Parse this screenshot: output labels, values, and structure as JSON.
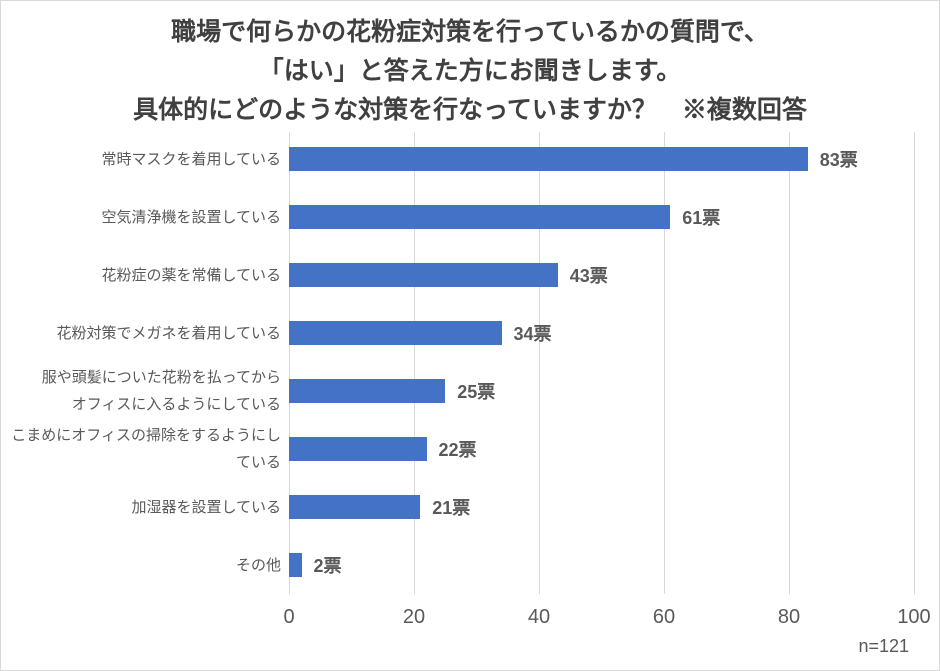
{
  "title": {
    "lines": [
      "職場で何らかの花粉症対策を行っているかの質問で、",
      "「はい」と答えた方にお聞きします。",
      "具体的にどのような対策を行なっていますか？　※複数回答"
    ]
  },
  "chart_data": {
    "type": "bar",
    "orientation": "horizontal",
    "title": "職場で何らかの花粉症対策を行っているかの質問で、「はい」と答えた方にお聞きします。具体的にどのような対策を行なっていますか？　※複数回答",
    "categories": [
      "常時マスクを着用している",
      "空気清浄機を設置している",
      "花粉症の薬を常備している",
      "花粉対策でメガネを着用している",
      "服や頭髪についた花粉を払ってから\nオフィスに入るようにしている",
      "こまめにオフィスの掃除をするようにしている",
      "加湿器を設置している",
      "その他"
    ],
    "values": [
      83,
      61,
      43,
      34,
      25,
      22,
      21,
      2
    ],
    "value_labels": [
      "83票",
      "61票",
      "43票",
      "34票",
      "25票",
      "22票",
      "21票",
      "2票"
    ],
    "value_suffix": "票",
    "xlabel": "",
    "ylabel": "",
    "xlim": [
      0,
      100
    ],
    "xticks": [
      0,
      20,
      40,
      60,
      80,
      100
    ],
    "grid": true,
    "legend": false,
    "footnote": "n=121",
    "colors": {
      "bar": "#4472C4",
      "gridline": "#D9D9D9",
      "title_text": "#404040",
      "label_text": "#595959"
    }
  }
}
